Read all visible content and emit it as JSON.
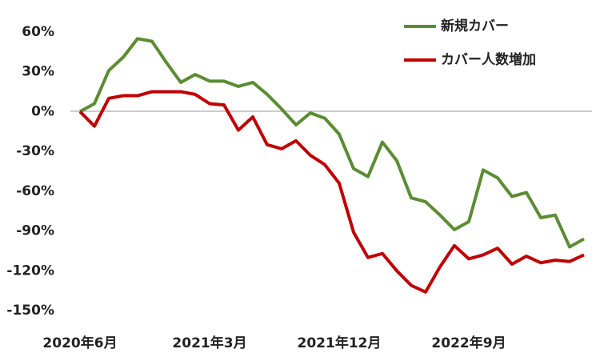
{
  "chart_data": {
    "type": "line",
    "categories": [
      "2020年6月",
      null,
      null,
      null,
      null,
      null,
      null,
      null,
      null,
      "2021年3月",
      null,
      null,
      null,
      null,
      null,
      null,
      null,
      null,
      "2021年12月",
      null,
      null,
      null,
      null,
      null,
      null,
      null,
      null,
      "2022年9月",
      null,
      null,
      null,
      null,
      null,
      null,
      null,
      null
    ],
    "series": [
      {
        "name": "新規カバー",
        "color": "#5b8c32",
        "values": [
          0,
          6,
          31,
          41,
          55,
          53,
          37,
          22,
          28,
          23,
          23,
          19,
          22,
          13,
          2,
          -10,
          -1,
          -5,
          -17,
          -43,
          -49,
          -23,
          -37,
          -65,
          -68,
          -78,
          -89,
          -83,
          -44,
          -50,
          -64,
          -61,
          -80,
          -78,
          -102,
          -96
        ]
      },
      {
        "name": "カバー人数増加",
        "color": "#c00000",
        "values": [
          0,
          -11,
          10,
          12,
          12,
          15,
          15,
          15,
          13,
          6,
          5,
          -14,
          -4,
          -25,
          -28,
          -22,
          -33,
          -40,
          -54,
          -91,
          -110,
          -107,
          -120,
          -131,
          -136,
          -117,
          -101,
          -111,
          -108,
          -103,
          -115,
          -109,
          -114,
          -112,
          -113,
          -108
        ]
      }
    ],
    "ylim": [
      -150,
      60
    ],
    "yticks": [
      {
        "value": 60,
        "label": "60%"
      },
      {
        "value": 30,
        "label": "30%"
      },
      {
        "value": 0,
        "label": "0%"
      },
      {
        "value": -30,
        "label": "-30%"
      },
      {
        "value": -60,
        "label": "-60%"
      },
      {
        "value": -90,
        "label": "-90%"
      },
      {
        "value": -120,
        "label": "-120%"
      },
      {
        "value": -150,
        "label": "-150%"
      }
    ],
    "legend": "top-right"
  }
}
